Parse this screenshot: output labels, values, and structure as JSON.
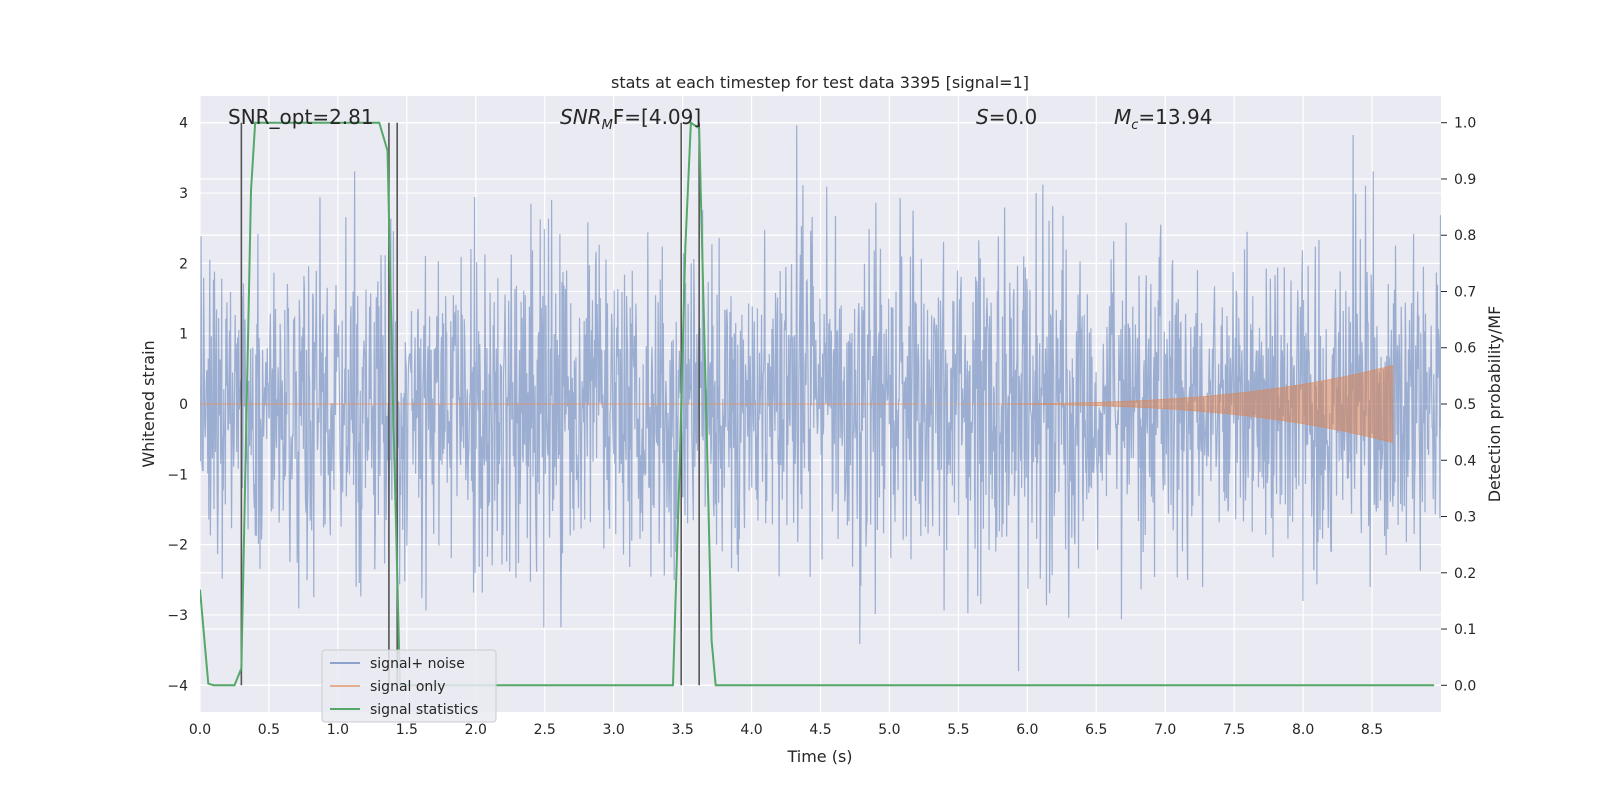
{
  "chart_data": {
    "type": "line",
    "title": "stats at each timestep for test data 3395 [signal=1]",
    "xlabel": "Time (s)",
    "ylabel": "Whitened strain",
    "y2label": "Detection probability/MF",
    "xlim": [
      0.0,
      9.0
    ],
    "ylim": [
      -4.38,
      4.38
    ],
    "y2lim": [
      -0.0475,
      1.0475
    ],
    "x_ticks": [
      0.0,
      0.5,
      1.0,
      1.5,
      2.0,
      2.5,
      3.0,
      3.5,
      4.0,
      4.5,
      5.0,
      5.5,
      6.0,
      6.5,
      7.0,
      7.5,
      8.0,
      8.5
    ],
    "x_tick_labels": [
      "0.0",
      "0.5",
      "1.0",
      "1.5",
      "2.0",
      "2.5",
      "3.0",
      "3.5",
      "4.0",
      "4.5",
      "5.0",
      "5.5",
      "6.0",
      "6.5",
      "7.0",
      "7.5",
      "8.0",
      "8.5"
    ],
    "y_ticks": [
      -4,
      -3,
      -2,
      -1,
      0,
      1,
      2,
      3,
      4
    ],
    "y_tick_labels": [
      "−4",
      "−3",
      "−2",
      "−1",
      "0",
      "1",
      "2",
      "3",
      "4"
    ],
    "y2_ticks": [
      0.0,
      0.1,
      0.2,
      0.3,
      0.4,
      0.5,
      0.6,
      0.7,
      0.8,
      0.9,
      1.0
    ],
    "y2_tick_labels": [
      "0.0",
      "0.1",
      "0.2",
      "0.3",
      "0.4",
      "0.5",
      "0.6",
      "0.7",
      "0.8",
      "0.9",
      "1.0"
    ],
    "grid": true,
    "legend_position": "lower-left",
    "annotations": {
      "snr_opt": "SNR_opt=2.81",
      "snr_mf_prefix": "SNR",
      "snr_mf_sub": "M",
      "snr_mf_suffix": "F=[4.09]",
      "s_var": "S",
      "s_value": "=0.0",
      "mc_var": "M",
      "mc_sub": "c",
      "mc_value": "=13.94"
    },
    "series": [
      {
        "name": "signal+ noise",
        "color": "#4c72b0",
        "axis": "left",
        "description_values": "white noise strain, roughly within [-4, 4]",
        "t_start": 0.0,
        "t_end": 9.0
      },
      {
        "name": "signal only",
        "color": "#dd8452",
        "axis": "left",
        "chirp_t_start": 5.2,
        "chirp_t_end": 8.65,
        "chirp_peak_amplitude": 0.55
      },
      {
        "name": "signal statistics",
        "color": "#55a868",
        "axis": "right",
        "x": [
          0.0,
          0.06,
          0.1,
          0.25,
          0.3,
          0.37,
          0.4,
          1.3,
          1.36,
          1.4,
          1.45,
          3.43,
          3.48,
          3.52,
          3.56,
          3.62,
          3.67,
          3.71,
          3.74,
          8.95
        ],
        "y": [
          0.17,
          0.003,
          0.0,
          0.0,
          0.03,
          0.88,
          1.0,
          1.0,
          0.95,
          0.5,
          0.0,
          0.0,
          0.4,
          0.78,
          1.0,
          0.99,
          0.5,
          0.08,
          0.0,
          0.0
        ]
      }
    ],
    "vertical_markers": [
      {
        "x": 0.3,
        "y_top": 4.0,
        "y_bottom": -4.0,
        "color": "#555555"
      },
      {
        "x": 1.37,
        "y_top": 4.0,
        "y_bottom": -4.0,
        "color": "#555555"
      },
      {
        "x": 1.43,
        "y_top": 4.0,
        "y_bottom": -4.0,
        "color": "#555555"
      },
      {
        "x": 3.49,
        "y_top": 4.0,
        "y_bottom": -4.0,
        "color": "#555555"
      },
      {
        "x": 3.62,
        "y_top": 4.0,
        "y_bottom": -4.0,
        "color": "#555555"
      }
    ]
  }
}
